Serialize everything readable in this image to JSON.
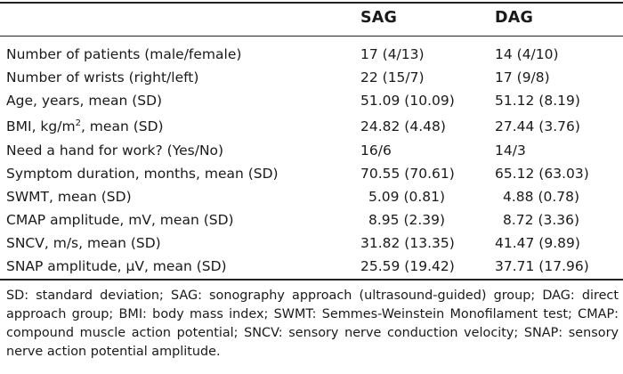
{
  "table": {
    "headers": {
      "sag": "SAG",
      "dag": "DAG"
    },
    "rows": [
      {
        "label": "Number of patients (male/female)",
        "sag": "17 (4/13)",
        "dag": "14 (4/10)"
      },
      {
        "label": "Number of wrists (right/left)",
        "sag": "22 (15/7)",
        "dag": "17 (9/8)"
      },
      {
        "label": "Age, years, mean (SD)",
        "sag": "51.09 (10.09)",
        "dag": "51.12 (8.19)"
      },
      {
        "label_pre": "BMI, kg/m",
        "label_sup": "2",
        "label_post": ", mean (SD)",
        "sag": "24.82 (4.48)",
        "dag": "27.44 (3.76)"
      },
      {
        "label": "Need a hand for work? (Yes/No)",
        "sag": "16/6",
        "dag": "14/3"
      },
      {
        "label": "Symptom duration, months, mean (SD)",
        "sag": "70.55 (70.61)",
        "dag": "65.12 (63.03)"
      },
      {
        "label": "SWMT, mean (SD)",
        "sag": "5.09 (0.81)",
        "dag": "4.88 (0.78)"
      },
      {
        "label": "CMAP amplitude, mV, mean (SD)",
        "sag": "8.95 (2.39)",
        "dag": "8.72 (3.36)"
      },
      {
        "label": "SNCV, m/s, mean (SD)",
        "sag": "31.82 (13.35)",
        "dag": "41.47 (9.89)"
      },
      {
        "label": "SNAP amplitude, μV, mean (SD)",
        "sag": "25.59 (19.42)",
        "dag": "37.71 (17.96)"
      }
    ],
    "footnote": "SD: standard deviation; SAG: sonography approach (ultrasound-guided) group; DAG: direct approach group; BMI: body mass index; SWMT: Semmes-Weinstein Monofilament test; CMAP: compound muscle action potential; SNCV: sensory nerve conduction velocity; SNAP: sensory nerve action potential amplitude."
  }
}
